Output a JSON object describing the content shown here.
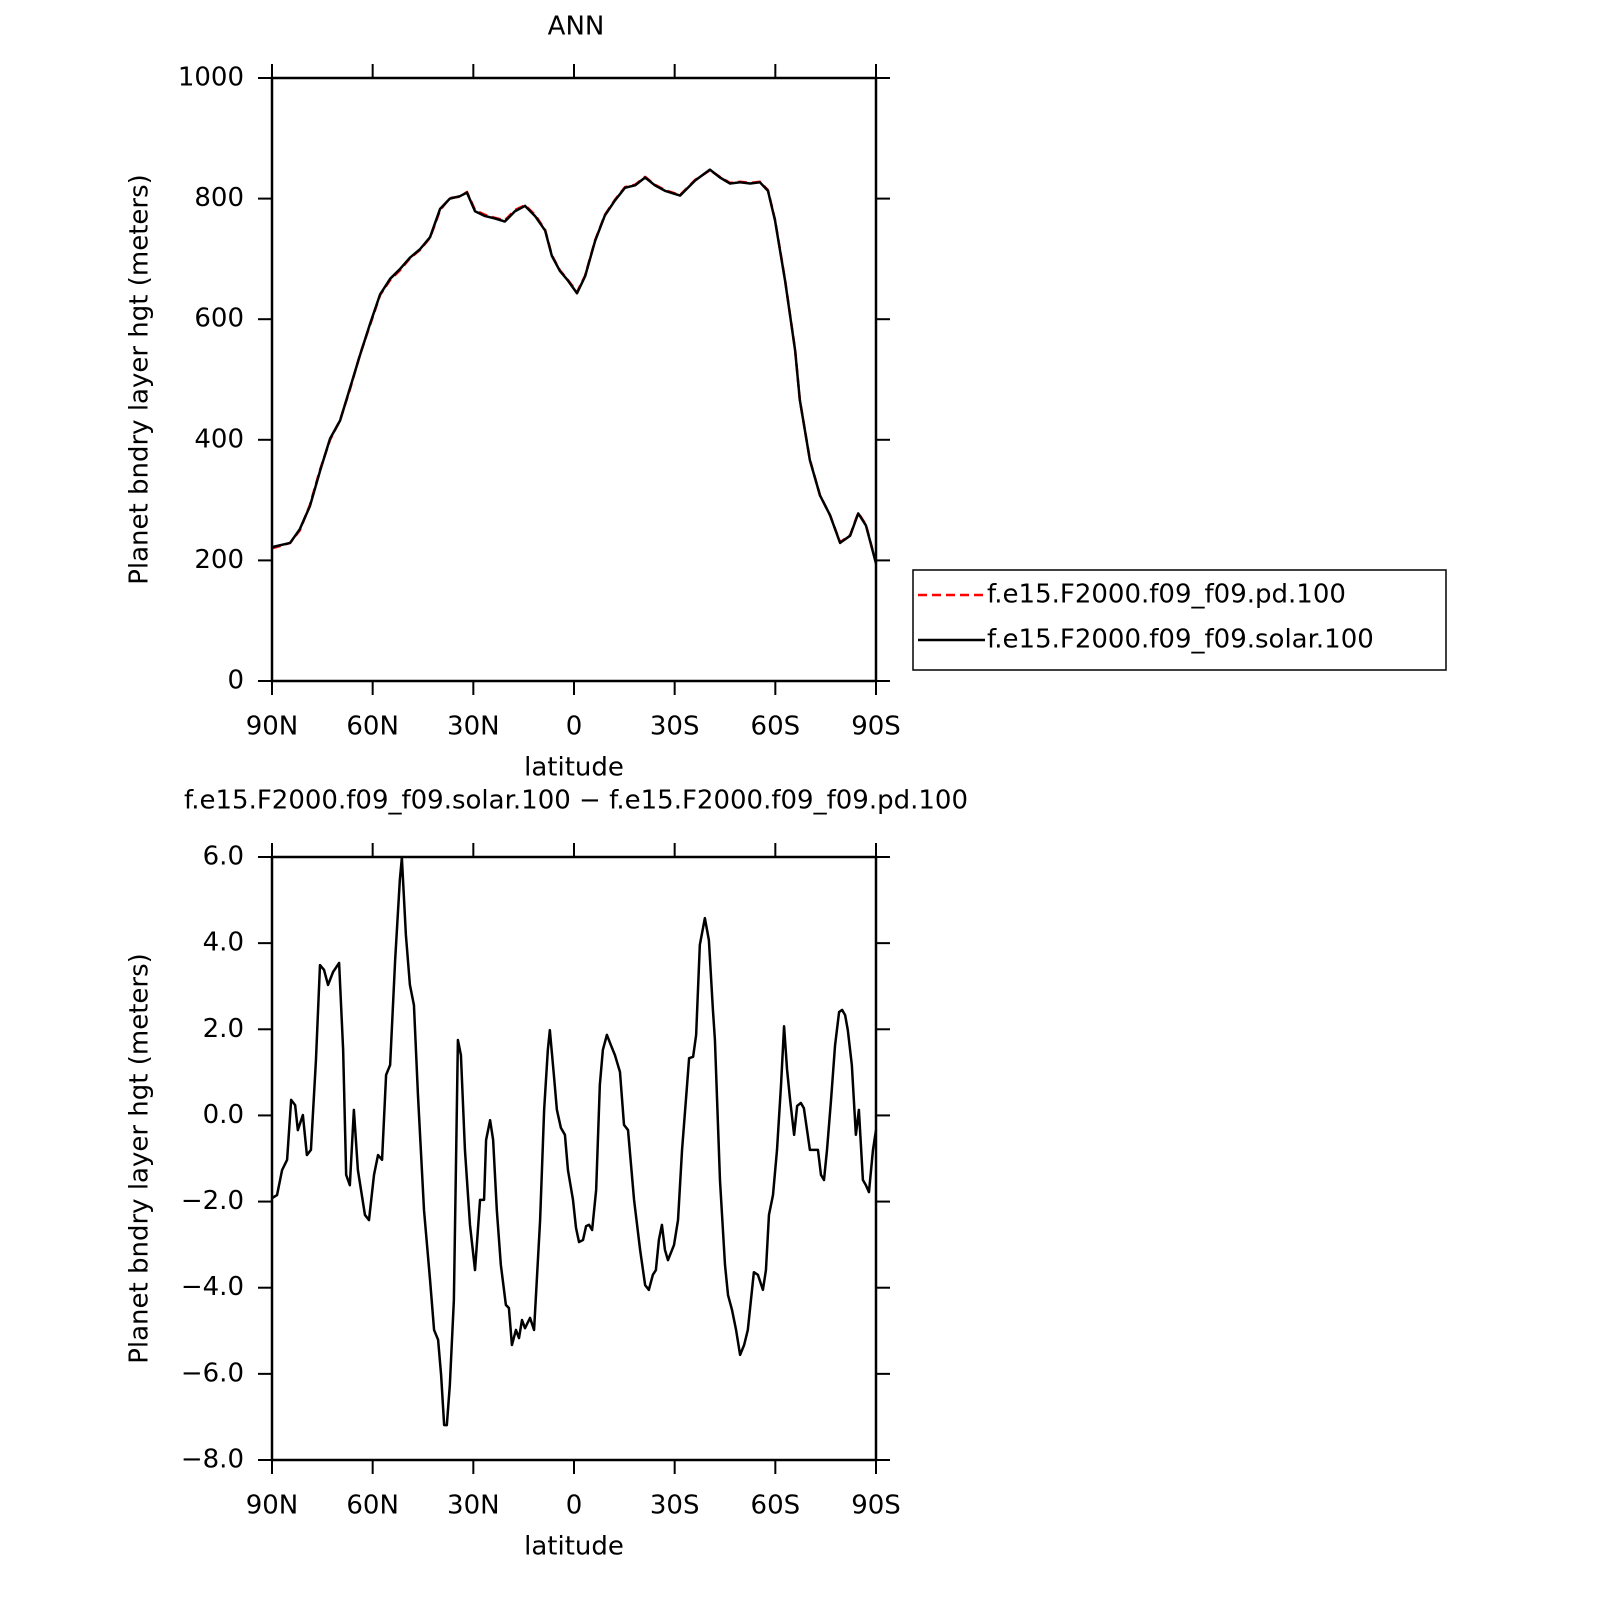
{
  "chart_data": [
    {
      "type": "line",
      "title": "ANN",
      "xlabel": "latitude",
      "ylabel": "Planet bndry layer hgt (meters)",
      "x": [
        90,
        84.6,
        81.7,
        78.7,
        75.7,
        72.7,
        69.7,
        66.8,
        63.8,
        60.8,
        57.8,
        54.8,
        51.9,
        48.9,
        45.9,
        42.9,
        39.9,
        37,
        34,
        31.9,
        29.5,
        26.5,
        23.5,
        20.6,
        17.6,
        14.6,
        11.6,
        8.6,
        6.6,
        4.2,
        1.8,
        -0.9,
        -3.3,
        -6.3,
        -9.2,
        -12.2,
        -15.2,
        -18.2,
        -21.2,
        -24.1,
        -27.1,
        -31.6,
        -36.1,
        -40.5,
        -43.5,
        -46.5,
        -49.5,
        -52.5,
        -55.4,
        -57.8,
        -59.9,
        -62.9,
        -65.9,
        -67.3,
        -70.3,
        -73.3,
        -76.3,
        -79.3,
        -82.3,
        -84.7,
        -87,
        -90
      ],
      "series": [
        {
          "name": "f.e15.F2000.f09_f09.pd.100",
          "color": "#ff0000",
          "dash": true,
          "values": [
            220,
            229,
            250,
            292,
            350,
            400,
            433,
            483,
            541,
            590,
            640,
            665,
            681,
            701,
            715,
            735,
            781,
            801,
            803,
            811,
            781,
            773,
            768,
            764,
            781,
            789,
            773,
            748,
            706,
            681,
            665,
            645,
            672,
            731,
            773,
            798,
            819,
            823,
            836,
            823,
            814,
            806,
            831,
            847,
            836,
            826,
            828,
            826,
            828,
            814,
            765,
            665,
            549,
            466,
            367,
            308,
            275,
            230,
            242,
            279,
            259,
            196
          ]
        },
        {
          "name": "f.e15.F2000.f09_f09.solar.100",
          "color": "#000000",
          "dash": false,
          "values": [
            222,
            229,
            252,
            290,
            348,
            402,
            432,
            485,
            540,
            592,
            641,
            667,
            683,
            702,
            716,
            736,
            783,
            800,
            804,
            810,
            779,
            771,
            767,
            762,
            779,
            788,
            771,
            747,
            705,
            680,
            664,
            643,
            671,
            730,
            772,
            797,
            818,
            822,
            835,
            822,
            813,
            805,
            830,
            848,
            835,
            825,
            827,
            825,
            827,
            813,
            764,
            664,
            548,
            466,
            366,
            308,
            275,
            229,
            241,
            278,
            258,
            195
          ]
        }
      ],
      "xlim": [
        90,
        -90
      ],
      "xticks": [
        {
          "value": 90,
          "label": "90N"
        },
        {
          "value": 60,
          "label": "60N"
        },
        {
          "value": 30,
          "label": "30N"
        },
        0,
        {
          "value": -30,
          "label": "30S"
        },
        {
          "value": -60,
          "label": "60S"
        },
        {
          "value": -90,
          "label": "90S"
        }
      ],
      "ylim": [
        0,
        1000
      ],
      "yticks": [
        0,
        200,
        400,
        600,
        800,
        1000
      ],
      "legend": "right"
    },
    {
      "type": "line",
      "title": "f.e15.F2000.f09_f09.solar.100 − f.e15.F2000.f09_f09.pd.100",
      "xlabel": "latitude",
      "ylabel": "Planet bndry layer hgt (meters)",
      "x": [
        90,
        88.5,
        87.0,
        85.5,
        84.3,
        83.1,
        82.3,
        80.8,
        79.6,
        78.4,
        76.9,
        75.7,
        74.5,
        73.3,
        71.8,
        70.0,
        68.8,
        67.9,
        66.8,
        65.6,
        64.4,
        62.3,
        61.1,
        59.6,
        58.4,
        57.2,
        56.0,
        54.8,
        53.3,
        51.9,
        51.3,
        50.1,
        48.9,
        47.7,
        46.5,
        44.7,
        42.9,
        41.7,
        40.5,
        39.6,
        38.7,
        37.9,
        37.0,
        35.8,
        34.6,
        33.7,
        32.5,
        31.0,
        29.5,
        28.0,
        26.8,
        26.2,
        25.0,
        24.1,
        23.0,
        21.8,
        20.3,
        19.4,
        18.5,
        17.3,
        16.4,
        15.5,
        14.6,
        13.1,
        11.9,
        10.1,
        8.9,
        7.8,
        7.2,
        6.0,
        5.1,
        3.9,
        2.7,
        1.8,
        0.3,
        -0.6,
        -1.5,
        -2.7,
        -3.6,
        -4.5,
        -5.4,
        -6.6,
        -7.7,
        -8.6,
        -9.8,
        -11.0,
        -12.2,
        -13.7,
        -14.9,
        -16.1,
        -17.9,
        -19.7,
        -21.2,
        -22.3,
        -23.5,
        -24.4,
        -25.3,
        -26.2,
        -27.1,
        -28.0,
        -29.8,
        -31.0,
        -32.2,
        -33.7,
        -34.3,
        -35.5,
        -36.4,
        -37.5,
        -39.0,
        -40.2,
        -41.4,
        -42.0,
        -43.5,
        -45.0,
        -45.9,
        -47.1,
        -48.3,
        -49.5,
        -50.7,
        -51.8,
        -53.6,
        -54.8,
        -56.3,
        -57.2,
        -58.1,
        -59.3,
        -60.5,
        -61.7,
        -62.6,
        -63.5,
        -64.4,
        -65.6,
        -66.5,
        -67.6,
        -68.5,
        -70.3,
        -71.8,
        -72.7,
        -73.6,
        -74.5,
        -75.4,
        -76.6,
        -77.8,
        -79.0,
        -79.9,
        -80.8,
        -81.6,
        -82.8,
        -84.0,
        -84.9,
        -86.1,
        -87.0,
        -87.9,
        -89.1,
        -90.0
      ],
      "series": [
        {
          "color": "#000000",
          "dash": false,
          "values": [
            -1.92,
            -1.85,
            -1.27,
            -1.03,
            0.36,
            0.24,
            -0.34,
            0.01,
            -0.92,
            -0.8,
            1.29,
            3.49,
            3.38,
            3.03,
            3.33,
            3.54,
            1.52,
            -1.38,
            -1.62,
            0.13,
            -1.27,
            -2.31,
            -2.43,
            -1.38,
            -0.92,
            -1.03,
            0.94,
            1.17,
            3.61,
            5.47,
            5.98,
            4.19,
            3.03,
            2.56,
            0.47,
            -2.2,
            -3.82,
            -4.98,
            -5.21,
            -6.03,
            -7.19,
            -7.19,
            -6.26,
            -4.29,
            1.75,
            1.4,
            -0.8,
            -2.54,
            -3.59,
            -1.96,
            -1.96,
            -0.57,
            -0.11,
            -0.57,
            -2.2,
            -3.47,
            -4.4,
            -4.47,
            -5.33,
            -4.98,
            -5.17,
            -4.75,
            -4.94,
            -4.7,
            -4.98,
            -2.43,
            0.13,
            1.52,
            1.98,
            0.94,
            0.13,
            -0.29,
            -0.45,
            -1.27,
            -1.96,
            -2.61,
            -2.94,
            -2.89,
            -2.57,
            -2.54,
            -2.66,
            -1.73,
            0.71,
            1.52,
            1.87,
            1.63,
            1.4,
            1.01,
            -0.22,
            -0.34,
            -1.96,
            -3.12,
            -3.94,
            -4.05,
            -3.7,
            -3.59,
            -2.89,
            -2.54,
            -3.12,
            -3.36,
            -3.01,
            -2.43,
            -0.8,
            0.71,
            1.33,
            1.36,
            1.87,
            3.96,
            4.58,
            4.07,
            2.45,
            1.75,
            -1.5,
            -3.47,
            -4.17,
            -4.52,
            -4.98,
            -5.56,
            -5.33,
            -4.98,
            -3.64,
            -3.7,
            -4.05,
            -3.59,
            -2.31,
            -1.85,
            -0.8,
            0.71,
            2.07,
            1.06,
            0.36,
            -0.45,
            0.22,
            0.29,
            0.17,
            -0.8,
            -0.8,
            -0.8,
            -1.38,
            -1.5,
            -0.8,
            0.36,
            1.63,
            2.4,
            2.45,
            2.33,
            1.98,
            1.17,
            -0.45,
            0.13,
            -1.5,
            -1.62,
            -1.78,
            -0.8,
            -0.34
          ]
        }
      ],
      "xlim": [
        90,
        -90
      ],
      "xticks": [
        {
          "value": 90,
          "label": "90N"
        },
        {
          "value": 60,
          "label": "60N"
        },
        {
          "value": 30,
          "label": "30N"
        },
        0,
        {
          "value": -30,
          "label": "30S"
        },
        {
          "value": -60,
          "label": "60S"
        },
        {
          "value": -90,
          "label": "90S"
        }
      ],
      "ylim": [
        -8,
        6
      ],
      "yticks": [
        {
          "value": -8,
          "label": "−8.0"
        },
        {
          "value": -6,
          "label": "−6.0"
        },
        {
          "value": -4,
          "label": "−4.0"
        },
        {
          "value": -2,
          "label": "−2.0"
        },
        {
          "value": 0,
          "label": "0.0"
        },
        {
          "value": 2,
          "label": "2.0"
        },
        {
          "value": 4,
          "label": "4.0"
        },
        {
          "value": 6,
          "label": "6.0"
        }
      ]
    }
  ]
}
